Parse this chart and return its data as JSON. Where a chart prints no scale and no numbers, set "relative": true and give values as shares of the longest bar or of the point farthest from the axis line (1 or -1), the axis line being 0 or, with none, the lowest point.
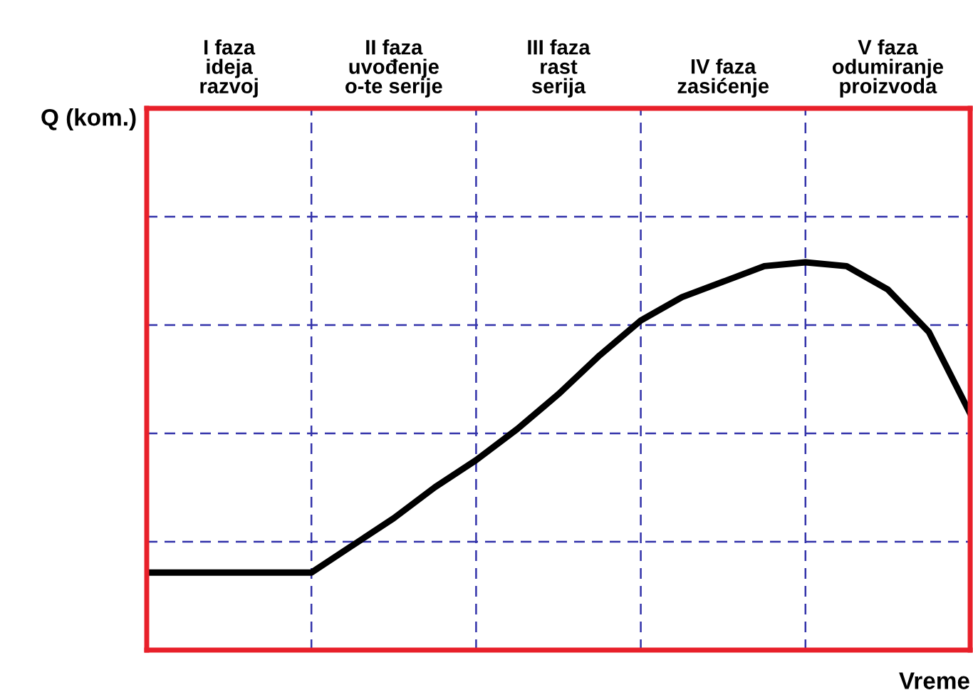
{
  "chart_data": {
    "type": "line",
    "relative": true,
    "xlabel": "Vreme",
    "grid": true,
    "legend": false,
    "marker": "none",
    "line_style": "solid",
    "annotations": [
      "Q (kom.)",
      "I faza\nideja\nrazvoj",
      "II faza\nuvođenje\no-te serije",
      "III faza\nrast\nserija",
      "IV faza\nzasićenje",
      "V faza\nodumiranje\nproizvoda"
    ],
    "categories": [
      null,
      null,
      null,
      null,
      null,
      null,
      null,
      null,
      null,
      null,
      null,
      null,
      null,
      null,
      null,
      null,
      null,
      null,
      null,
      null,
      null
    ],
    "series": [
      {
        "color": "#000000",
        "values": [
          0.2,
          0.2,
          0.2,
          0.2,
          0.2,
          0.27,
          0.34,
          0.42,
          0.49,
          0.57,
          0.66,
          0.76,
          0.85,
          0.91,
          0.95,
          0.99,
          1,
          0.99,
          0.93,
          0.82,
          0.61
        ]
      }
    ]
  }
}
